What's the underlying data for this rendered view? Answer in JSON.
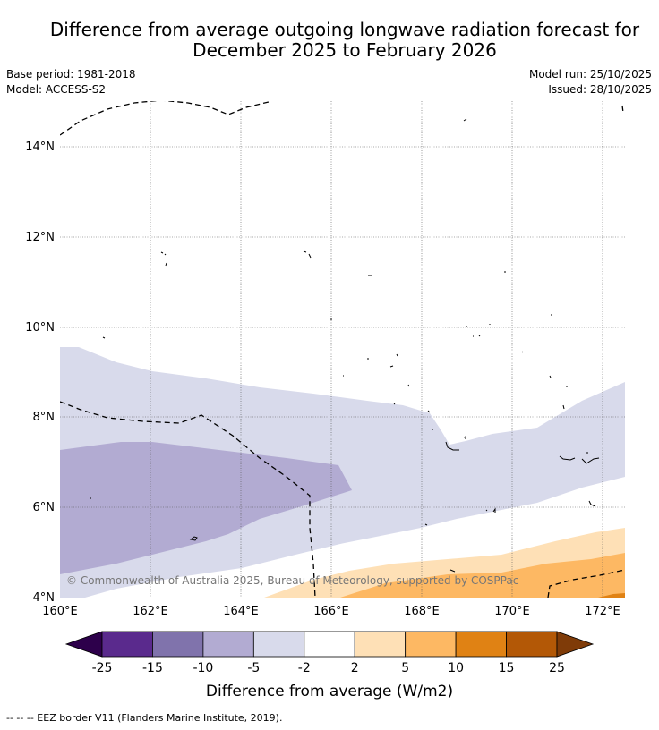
{
  "title": {
    "line1": "Difference from average outgoing longwave radiation forecast for",
    "line2": "December 2025 to February 2026"
  },
  "meta": {
    "base_period": "Base period: 1981-2018",
    "model": "Model: ACCESS-S2",
    "model_run": "Model run: 25/10/2025",
    "issued": "Issued: 28/10/2025"
  },
  "map": {
    "lat_labels": [
      "14°N",
      "12°N",
      "10°N",
      "8°N",
      "6°N",
      "4°N"
    ],
    "lon_labels": [
      "160°E",
      "162°E",
      "164°E",
      "166°E",
      "168°E",
      "170°E",
      "172°E"
    ],
    "copyright": "© Commonwealth of Australia 2025, Bureau of Meteorology, supported by COSPPac"
  },
  "colorbar": {
    "ticks": [
      "-25",
      "-15",
      "-10",
      "-5",
      "-2",
      "2",
      "5",
      "10",
      "15",
      "25"
    ],
    "colors": [
      "#2d004b",
      "#5a2a8d",
      "#8073ac",
      "#b2abd2",
      "#d8daeb",
      "#ffffff",
      "#fee0b6",
      "#fdb863",
      "#e08214",
      "#b35806",
      "#7f3b08"
    ],
    "title": "Difference from average (W/m2)"
  },
  "legend": {
    "eez": "--  --  -- EEZ border V11 (Flanders Marine Institute, 2019)."
  }
}
